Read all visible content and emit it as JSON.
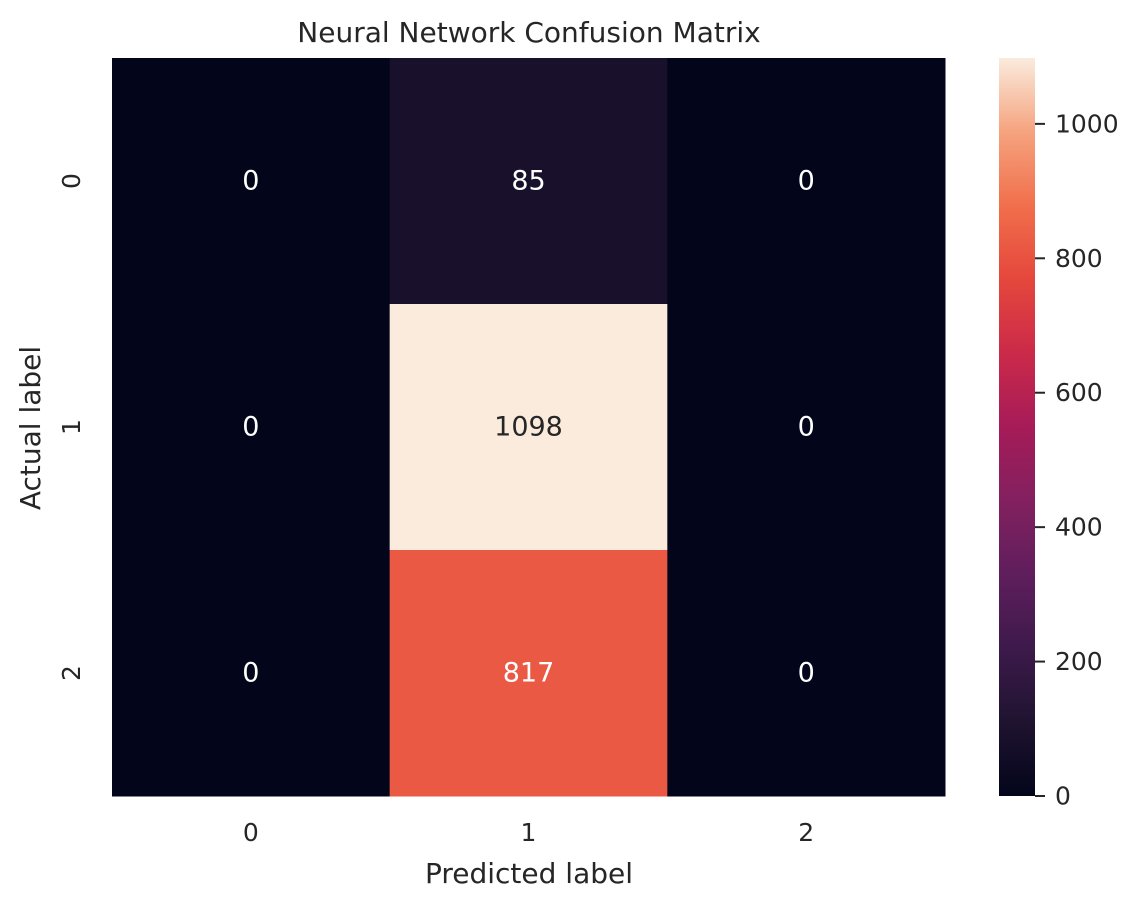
{
  "chart_data": {
    "type": "heatmap",
    "title": "Neural Network Confusion Matrix",
    "xlabel": "Predicted label",
    "ylabel": "Actual label",
    "x_categories": [
      "0",
      "1",
      "2"
    ],
    "y_categories": [
      "0",
      "1",
      "2"
    ],
    "values": [
      [
        0,
        85,
        0
      ],
      [
        0,
        1098,
        0
      ],
      [
        0,
        817,
        0
      ]
    ],
    "colormap": "rocket",
    "colorbar": {
      "range": [
        0,
        1098
      ],
      "ticks": [
        0,
        200,
        400,
        600,
        800,
        1000
      ],
      "tick_labels": [
        "0",
        "200",
        "400",
        "600",
        "800",
        "1000"
      ]
    },
    "grid": false,
    "legend": "colorbar-right"
  }
}
